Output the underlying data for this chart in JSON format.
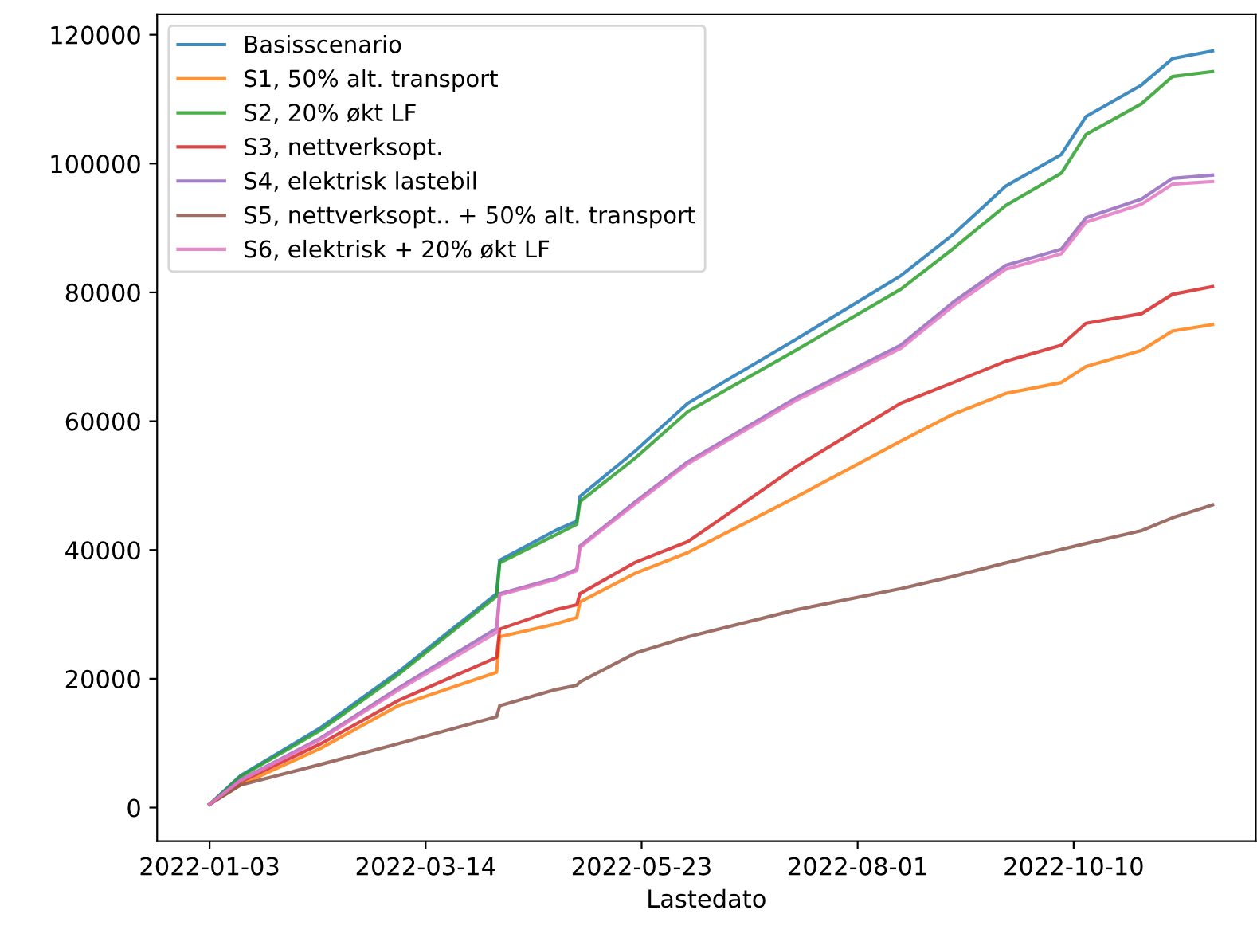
{
  "chart_data": {
    "type": "line",
    "xlabel": "Lastedato",
    "x": [
      "2022-01-03",
      "2022-01-13",
      "2022-02-08",
      "2022-03-05",
      "2022-04-06",
      "2022-04-07",
      "2022-04-25",
      "2022-05-02",
      "2022-05-03",
      "2022-05-21",
      "2022-06-07",
      "2022-07-12",
      "2022-08-15",
      "2022-09-01",
      "2022-09-18",
      "2022-10-06",
      "2022-10-14",
      "2022-11-01",
      "2022-11-11",
      "2022-11-24"
    ],
    "series": [
      {
        "name": "Basisscenario",
        "color": "#1f77b4",
        "values": [
          500,
          4950,
          12400,
          21000,
          33200,
          38400,
          43000,
          44500,
          48300,
          55400,
          62800,
          72700,
          82600,
          89000,
          96500,
          101400,
          107300,
          112200,
          116300,
          117500
        ]
      },
      {
        "name": "S1, 50% alt. transport",
        "color": "#ff7f0e",
        "values": [
          500,
          3500,
          9200,
          15800,
          21000,
          26500,
          28500,
          29500,
          31900,
          36400,
          39600,
          48200,
          56900,
          61100,
          64300,
          66000,
          68500,
          71000,
          74000,
          75000
        ]
      },
      {
        "name": "S2, 20% økt LF",
        "color": "#2ca02c",
        "values": [
          500,
          4800,
          12000,
          20600,
          32800,
          38000,
          42300,
          44000,
          47500,
          54300,
          61500,
          71000,
          80500,
          86800,
          93500,
          98500,
          104500,
          109300,
          113500,
          114300
        ]
      },
      {
        "name": "S3, nettverksopt.",
        "color": "#d62728",
        "values": [
          500,
          4000,
          9900,
          16600,
          23300,
          27700,
          30700,
          31500,
          33200,
          38100,
          41300,
          52900,
          62800,
          66000,
          69300,
          71800,
          75200,
          76700,
          79700,
          80900
        ]
      },
      {
        "name": "S4, elektrisk lastebil",
        "color": "#9467bd",
        "values": [
          500,
          4300,
          10800,
          18500,
          27800,
          33200,
          35600,
          37000,
          40600,
          47500,
          53700,
          63600,
          71800,
          78500,
          84200,
          86700,
          91600,
          94500,
          97700,
          98200
        ]
      },
      {
        "name": "S5, nettverksopt.. + 50% alt. transport",
        "color": "#8c564b",
        "values": [
          500,
          3500,
          6700,
          9900,
          14100,
          15800,
          18300,
          19000,
          19500,
          24000,
          26500,
          30700,
          34000,
          35900,
          38000,
          40100,
          41000,
          43000,
          45000,
          47000
        ]
      },
      {
        "name": "S6, elektrisk + 20% økt LF",
        "color": "#e377c2",
        "values": [
          500,
          4200,
          10600,
          18200,
          27200,
          33000,
          35400,
          36800,
          40400,
          47200,
          53400,
          63200,
          71300,
          77900,
          83600,
          86000,
          90900,
          93700,
          96800,
          97200
        ]
      }
    ],
    "xlim": [
      "2021-12-17",
      "2022-12-08"
    ],
    "xticks": [
      "2022-01-03",
      "2022-03-14",
      "2022-05-23",
      "2022-08-01",
      "2022-10-10"
    ],
    "ylim": [
      -5200,
      123200
    ],
    "yticks": [
      0,
      20000,
      40000,
      60000,
      80000,
      100000,
      120000
    ],
    "grid": false,
    "legend": "top left",
    "marker": "none",
    "line_style": "solid"
  }
}
